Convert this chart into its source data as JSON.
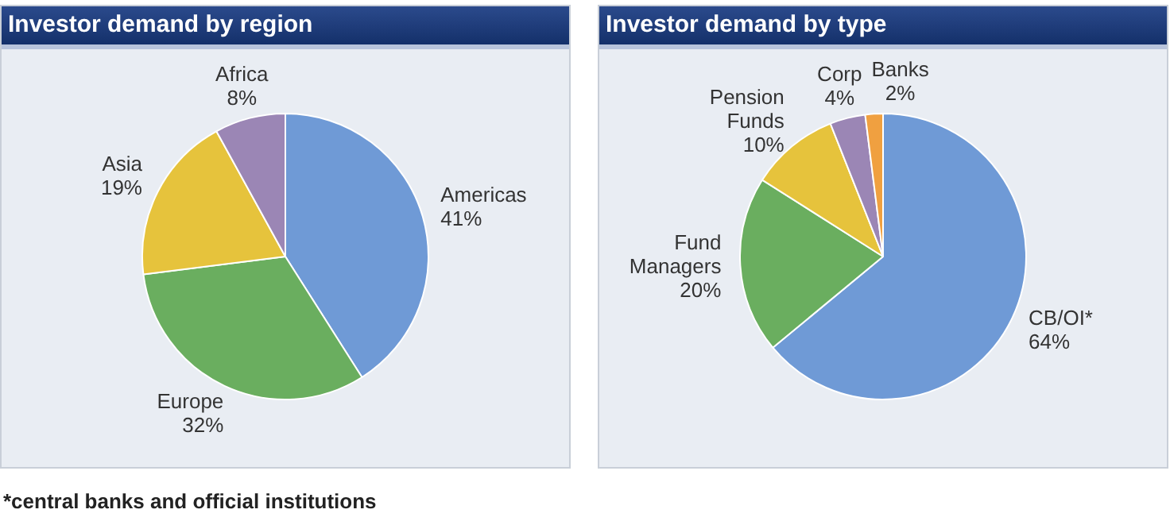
{
  "chart_data": [
    {
      "type": "pie",
      "title": "Investor demand by region",
      "categories": [
        "Americas",
        "Europe",
        "Asia",
        "Africa"
      ],
      "values": [
        41,
        32,
        19,
        8
      ],
      "value_labels": [
        "41%",
        "32%",
        "19%",
        "8%"
      ],
      "colors": [
        "#6f9ad6",
        "#6aae5f",
        "#e6c33c",
        "#9b86b5"
      ],
      "legend": false
    },
    {
      "type": "pie",
      "title": "Investor demand by type",
      "categories": [
        "CB/OI*",
        "Fund Managers",
        "Pension Funds",
        "Corp",
        "Banks"
      ],
      "values": [
        64,
        20,
        10,
        4,
        2
      ],
      "value_labels": [
        "64%",
        "20%",
        "10%",
        "4%",
        "2%"
      ],
      "colors": [
        "#6f9ad6",
        "#6aae5f",
        "#e6c33c",
        "#9b86b5",
        "#f0a040"
      ],
      "legend": false,
      "annotations": [
        "*central banks and official institutions"
      ]
    }
  ]
}
